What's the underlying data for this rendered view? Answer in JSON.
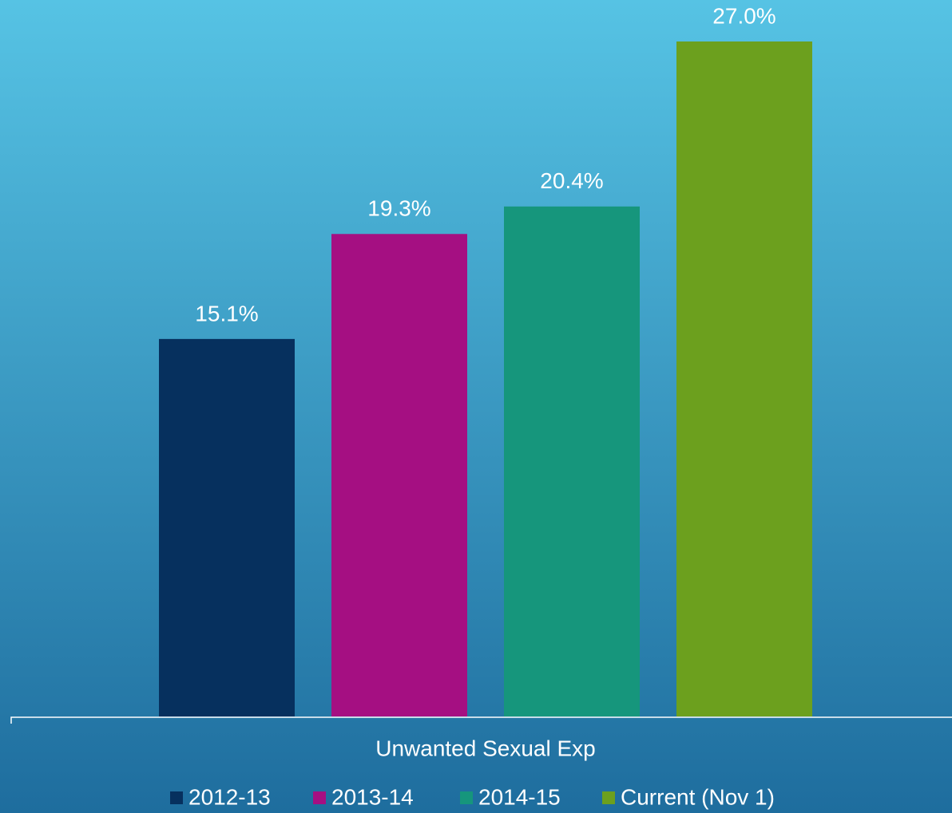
{
  "chart_data": {
    "type": "bar",
    "categories": [
      "Unwanted Sexual Exp"
    ],
    "series": [
      {
        "name": "2012-13",
        "color": "#06305e",
        "values": [
          15.1
        ],
        "value_labels": [
          "15.1%"
        ]
      },
      {
        "name": "2013-14",
        "color": "#a50f82",
        "values": [
          19.3
        ],
        "value_labels": [
          "19.3%"
        ]
      },
      {
        "name": "2014-15",
        "color": "#16967c",
        "values": [
          20.4
        ],
        "value_labels": [
          "20.4%"
        ]
      },
      {
        "name": "Current (Nov 1)",
        "color": "#6ca01e",
        "values": [
          27.0
        ],
        "value_labels": [
          "27.0%"
        ]
      }
    ],
    "legend": "bottom"
  }
}
